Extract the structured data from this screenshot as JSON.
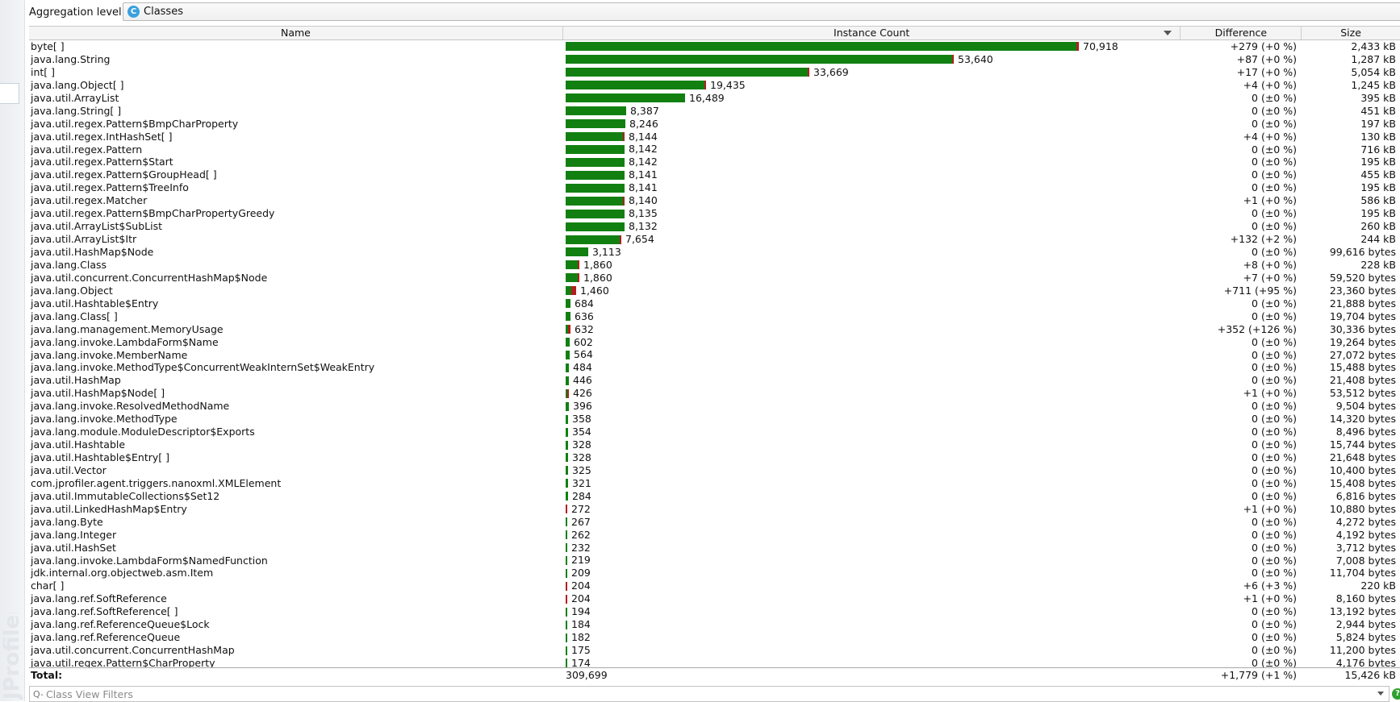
{
  "toolbar": {
    "aggregation_label": "Aggregation level:",
    "aggregation_value": "Classes",
    "aggregation_icon": "class-icon",
    "aggregation_icon_glyph": "C"
  },
  "table": {
    "columns": {
      "name": "Name",
      "count": "Instance Count",
      "difference": "Difference",
      "size": "Size"
    },
    "max_count": 70918,
    "rows": [
      {
        "name": "byte[ ]",
        "count": "70,918",
        "n": 70918,
        "diff": "+279 (+0 %)",
        "size": "2,433 kB",
        "red": 279
      },
      {
        "name": "java.lang.String",
        "count": "53,640",
        "n": 53640,
        "diff": "+87 (+0 %)",
        "size": "1,287 kB",
        "red": 87
      },
      {
        "name": "int[ ]",
        "count": "33,669",
        "n": 33669,
        "diff": "+17 (+0 %)",
        "size": "5,054 kB",
        "red": 17
      },
      {
        "name": "java.lang.Object[ ]",
        "count": "19,435",
        "n": 19435,
        "diff": "+4 (+0 %)",
        "size": "1,245 kB",
        "red": 4
      },
      {
        "name": "java.util.ArrayList",
        "count": "16,489",
        "n": 16489,
        "diff": "0 (±0 %)",
        "size": "395 kB",
        "red": 0
      },
      {
        "name": "java.lang.String[ ]",
        "count": "8,387",
        "n": 8387,
        "diff": "0 (±0 %)",
        "size": "451 kB",
        "red": 0
      },
      {
        "name": "java.util.regex.Pattern$BmpCharProperty",
        "count": "8,246",
        "n": 8246,
        "diff": "0 (±0 %)",
        "size": "197 kB",
        "red": 0
      },
      {
        "name": "java.util.regex.IntHashSet[ ]",
        "count": "8,144",
        "n": 8144,
        "diff": "+4 (+0 %)",
        "size": "130 kB",
        "red": 4
      },
      {
        "name": "java.util.regex.Pattern",
        "count": "8,142",
        "n": 8142,
        "diff": "0 (±0 %)",
        "size": "716 kB",
        "red": 0
      },
      {
        "name": "java.util.regex.Pattern$Start",
        "count": "8,142",
        "n": 8142,
        "diff": "0 (±0 %)",
        "size": "195 kB",
        "red": 0
      },
      {
        "name": "java.util.regex.Pattern$GroupHead[ ]",
        "count": "8,141",
        "n": 8141,
        "diff": "0 (±0 %)",
        "size": "455 kB",
        "red": 0
      },
      {
        "name": "java.util.regex.Pattern$TreeInfo",
        "count": "8,141",
        "n": 8141,
        "diff": "0 (±0 %)",
        "size": "195 kB",
        "red": 0
      },
      {
        "name": "java.util.regex.Matcher",
        "count": "8,140",
        "n": 8140,
        "diff": "+1 (+0 %)",
        "size": "586 kB",
        "red": 1
      },
      {
        "name": "java.util.regex.Pattern$BmpCharPropertyGreedy",
        "count": "8,135",
        "n": 8135,
        "diff": "0 (±0 %)",
        "size": "195 kB",
        "red": 0
      },
      {
        "name": "java.util.ArrayList$SubList",
        "count": "8,132",
        "n": 8132,
        "diff": "0 (±0 %)",
        "size": "260 kB",
        "red": 0
      },
      {
        "name": "java.util.ArrayList$Itr",
        "count": "7,654",
        "n": 7654,
        "diff": "+132 (+2 %)",
        "size": "244 kB",
        "red": 132
      },
      {
        "name": "java.util.HashMap$Node",
        "count": "3,113",
        "n": 3113,
        "diff": "0 (±0 %)",
        "size": "99,616 bytes",
        "red": 0
      },
      {
        "name": "java.lang.Class",
        "count": "1,860",
        "n": 1860,
        "diff": "+8 (+0 %)",
        "size": "228 kB",
        "red": 8
      },
      {
        "name": "java.util.concurrent.ConcurrentHashMap$Node",
        "count": "1,860",
        "n": 1860,
        "diff": "+7 (+0 %)",
        "size": "59,520 bytes",
        "red": 7
      },
      {
        "name": "java.lang.Object",
        "count": "1,460",
        "n": 1460,
        "diff": "+711 (+95 %)",
        "size": "23,360 bytes",
        "red": 711
      },
      {
        "name": "java.util.Hashtable$Entry",
        "count": "684",
        "n": 684,
        "diff": "0 (±0 %)",
        "size": "21,888 bytes",
        "red": 0
      },
      {
        "name": "java.lang.Class[ ]",
        "count": "636",
        "n": 636,
        "diff": "0 (±0 %)",
        "size": "19,704 bytes",
        "red": 0
      },
      {
        "name": "java.lang.management.MemoryUsage",
        "count": "632",
        "n": 632,
        "diff": "+352 (+126 %)",
        "size": "30,336 bytes",
        "red": 352
      },
      {
        "name": "java.lang.invoke.LambdaForm$Name",
        "count": "602",
        "n": 602,
        "diff": "0 (±0 %)",
        "size": "19,264 bytes",
        "red": 0
      },
      {
        "name": "java.lang.invoke.MemberName",
        "count": "564",
        "n": 564,
        "diff": "0 (±0 %)",
        "size": "27,072 bytes",
        "red": 0
      },
      {
        "name": "java.lang.invoke.MethodType$ConcurrentWeakInternSet$WeakEntry",
        "count": "484",
        "n": 484,
        "diff": "0 (±0 %)",
        "size": "15,488 bytes",
        "red": 0
      },
      {
        "name": "java.util.HashMap",
        "count": "446",
        "n": 446,
        "diff": "0 (±0 %)",
        "size": "21,408 bytes",
        "red": 0
      },
      {
        "name": "java.util.HashMap$Node[ ]",
        "count": "426",
        "n": 426,
        "diff": "+1 (+0 %)",
        "size": "53,512 bytes",
        "red": 1
      },
      {
        "name": "java.lang.invoke.ResolvedMethodName",
        "count": "396",
        "n": 396,
        "diff": "0 (±0 %)",
        "size": "9,504 bytes",
        "red": 0
      },
      {
        "name": "java.lang.invoke.MethodType",
        "count": "358",
        "n": 358,
        "diff": "0 (±0 %)",
        "size": "14,320 bytes",
        "red": 0
      },
      {
        "name": "java.lang.module.ModuleDescriptor$Exports",
        "count": "354",
        "n": 354,
        "diff": "0 (±0 %)",
        "size": "8,496 bytes",
        "red": 0
      },
      {
        "name": "java.util.Hashtable",
        "count": "328",
        "n": 328,
        "diff": "0 (±0 %)",
        "size": "15,744 bytes",
        "red": 0
      },
      {
        "name": "java.util.Hashtable$Entry[ ]",
        "count": "328",
        "n": 328,
        "diff": "0 (±0 %)",
        "size": "21,648 bytes",
        "red": 0
      },
      {
        "name": "java.util.Vector",
        "count": "325",
        "n": 325,
        "diff": "0 (±0 %)",
        "size": "10,400 bytes",
        "red": 0
      },
      {
        "name": "com.jprofiler.agent.triggers.nanoxml.XMLElement",
        "count": "321",
        "n": 321,
        "diff": "0 (±0 %)",
        "size": "15,408 bytes",
        "red": 0
      },
      {
        "name": "java.util.ImmutableCollections$Set12",
        "count": "284",
        "n": 284,
        "diff": "0 (±0 %)",
        "size": "6,816 bytes",
        "red": 0
      },
      {
        "name": "java.util.LinkedHashMap$Entry",
        "count": "272",
        "n": 272,
        "diff": "+1 (+0 %)",
        "size": "10,880 bytes",
        "red": 1
      },
      {
        "name": "java.lang.Byte",
        "count": "267",
        "n": 267,
        "diff": "0 (±0 %)",
        "size": "4,272 bytes",
        "red": 0
      },
      {
        "name": "java.lang.Integer",
        "count": "262",
        "n": 262,
        "diff": "0 (±0 %)",
        "size": "4,192 bytes",
        "red": 0
      },
      {
        "name": "java.util.HashSet",
        "count": "232",
        "n": 232,
        "diff": "0 (±0 %)",
        "size": "3,712 bytes",
        "red": 0
      },
      {
        "name": "java.lang.invoke.LambdaForm$NamedFunction",
        "count": "219",
        "n": 219,
        "diff": "0 (±0 %)",
        "size": "7,008 bytes",
        "red": 0
      },
      {
        "name": "jdk.internal.org.objectweb.asm.Item",
        "count": "209",
        "n": 209,
        "diff": "0 (±0 %)",
        "size": "11,704 bytes",
        "red": 0
      },
      {
        "name": "char[ ]",
        "count": "204",
        "n": 204,
        "diff": "+6 (+3 %)",
        "size": "220 kB",
        "red": 6
      },
      {
        "name": "java.lang.ref.SoftReference",
        "count": "204",
        "n": 204,
        "diff": "+1 (+0 %)",
        "size": "8,160 bytes",
        "red": 1
      },
      {
        "name": "java.lang.ref.SoftReference[ ]",
        "count": "194",
        "n": 194,
        "diff": "0 (±0 %)",
        "size": "13,192 bytes",
        "red": 0
      },
      {
        "name": "java.lang.ref.ReferenceQueue$Lock",
        "count": "184",
        "n": 184,
        "diff": "0 (±0 %)",
        "size": "2,944 bytes",
        "red": 0
      },
      {
        "name": "java.lang.ref.ReferenceQueue",
        "count": "182",
        "n": 182,
        "diff": "0 (±0 %)",
        "size": "5,824 bytes",
        "red": 0
      },
      {
        "name": "java.util.concurrent.ConcurrentHashMap",
        "count": "175",
        "n": 175,
        "diff": "0 (±0 %)",
        "size": "11,200 bytes",
        "red": 0
      },
      {
        "name": "java.util.regex.Pattern$CharProperty",
        "count": "174",
        "n": 174,
        "diff": "0 (±0 %)",
        "size": "4,176 bytes",
        "red": 0
      }
    ],
    "total": {
      "label": "Total:",
      "count": "309,699",
      "diff": "+1,779 (+1 %)",
      "size": "15,426 kB"
    }
  },
  "filter": {
    "placeholder": "Class View Filters"
  },
  "help": {
    "glyph": "?"
  },
  "colors": {
    "bar_green": "#118011",
    "bar_red": "#b21f1f"
  }
}
